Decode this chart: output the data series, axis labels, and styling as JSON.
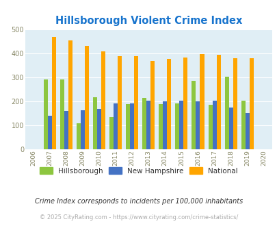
{
  "title": "Hillsborough Violent Crime Index",
  "years": [
    2007,
    2008,
    2009,
    2010,
    2011,
    2012,
    2013,
    2014,
    2015,
    2016,
    2017,
    2018,
    2019
  ],
  "hillsborough": [
    292,
    290,
    108,
    218,
    135,
    188,
    215,
    188,
    190,
    285,
    185,
    303,
    202
  ],
  "new_hampshire": [
    140,
    160,
    163,
    168,
    190,
    190,
    202,
    200,
    203,
    200,
    202,
    175,
    152
  ],
  "national": [
    467,
    455,
    432,
    407,
    387,
    387,
    368,
    377,
    383,
    397,
    394,
    381,
    379
  ],
  "color_hillsborough": "#8dc63f",
  "color_new_hampshire": "#4472c4",
  "color_national": "#ffa500",
  "background_color": "#e0eef5",
  "title_color": "#1874cd",
  "xlim": [
    2005.5,
    2020.5
  ],
  "ylim": [
    0,
    500
  ],
  "yticks": [
    0,
    100,
    200,
    300,
    400,
    500
  ],
  "xticks": [
    2006,
    2007,
    2008,
    2009,
    2010,
    2011,
    2012,
    2013,
    2014,
    2015,
    2016,
    2017,
    2018,
    2019,
    2020
  ],
  "legend_labels": [
    "Hillsborough",
    "New Hampshire",
    "National"
  ],
  "footnote1": "Crime Index corresponds to incidents per 100,000 inhabitants",
  "footnote2": "© 2025 CityRating.com - https://www.cityrating.com/crime-statistics/",
  "bar_width": 0.25
}
